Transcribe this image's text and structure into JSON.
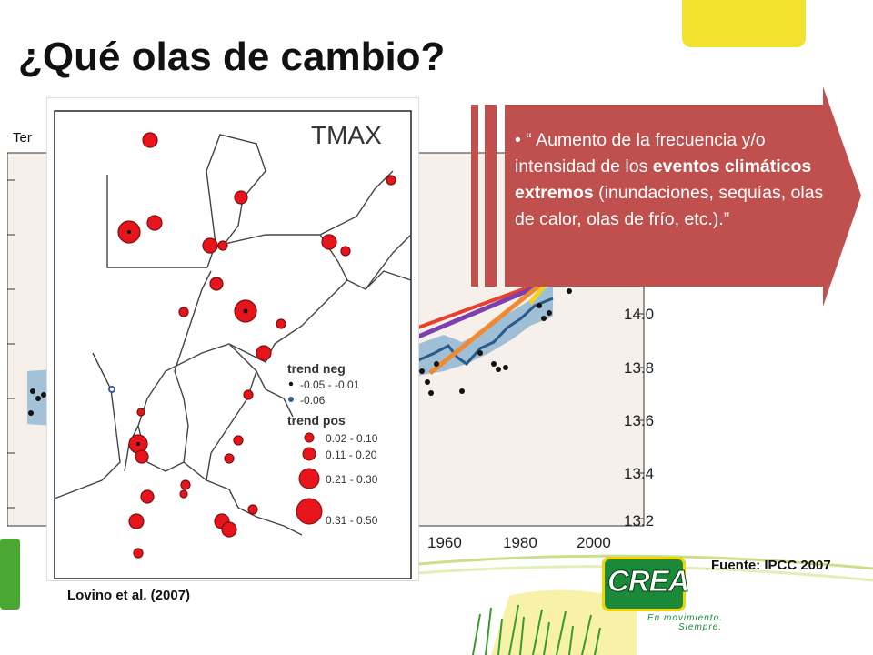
{
  "slide": {
    "title": "¿Qué olas de cambio?",
    "partial_label": "Ter",
    "map_credit": "Lovino et al. (2007)",
    "source": "Fuente: IPCC 2007"
  },
  "callout": {
    "bullet": "•",
    "text_before": "“ Aumento de la frecuencia y/o intensidad de los ",
    "text_bold": "eventos climáticos extremos",
    "text_after": " (inundaciones, sequías, olas de calor, olas de frío, etc.).”"
  },
  "map": {
    "title": "TMAX",
    "legend": {
      "neg_title": "trend neg",
      "neg_items": [
        "-0.05 - -0.01",
        "-0.06"
      ],
      "pos_title": "trend pos",
      "pos_items": [
        "0.02 - 0.10",
        "0.11 - 0.20",
        "0.21 - 0.30",
        "0.31 - 0.50"
      ]
    },
    "colors": {
      "positive": "#e8141c",
      "negative": "#3a5a9a"
    }
  },
  "chart_data": {
    "type": "scatter",
    "x_ticks": [
      "1960",
      "1980",
      "2000"
    ],
    "y_ticks": [
      "14.0",
      "13.8",
      "13.6",
      "13.4",
      "13.2"
    ],
    "series_colors": [
      "#e8402a",
      "#7a3fb0",
      "#f08a30",
      "#f5d020"
    ]
  },
  "logo": {
    "word": "CREA",
    "tagline1": "En movimiento.",
    "tagline2": "Siempre."
  }
}
